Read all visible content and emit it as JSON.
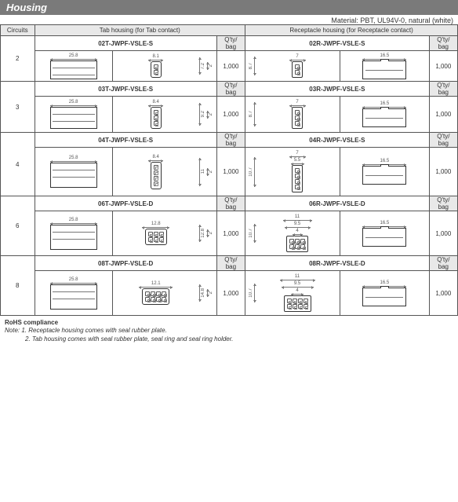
{
  "title": "Housing",
  "material": "Material: PBT, UL94V-0, natural (white)",
  "headers": {
    "circuits": "Circuits",
    "tab_housing": "Tab housing (for Tab contact)",
    "rec_housing": "Receptacle housing (for Receptacle contact)",
    "qty_bag": "Q'ty/\nbag"
  },
  "rows": [
    {
      "circuits": "2",
      "tab": {
        "part": "02T-JWPF-VSLE-S",
        "qty": "1,000",
        "len": "25.8",
        "end_w": "8.1",
        "end_h": "7.2",
        "pitch": "2",
        "rows": 1,
        "cols": 2
      },
      "rec": {
        "part": "02R-JWPF-VSLE-S",
        "qty": "1,000",
        "len": "16.5",
        "end_w": "7",
        "end_h": "8.7",
        "pitch": "2",
        "rows": 1,
        "cols": 2
      }
    },
    {
      "circuits": "3",
      "tab": {
        "part": "03T-JWPF-VSLE-S",
        "qty": "1,000",
        "len": "25.8",
        "end_w": "8.4",
        "end_h": "9.2",
        "pitch": "2",
        "rows": 1,
        "cols": 3
      },
      "rec": {
        "part": "03R-JWPF-VSLE-S",
        "qty": "1,000",
        "len": "16.5",
        "end_w": "7",
        "end_h": "8.7",
        "pitch": "2",
        "rows": 1,
        "cols": 3
      }
    },
    {
      "circuits": "4",
      "tab": {
        "part": "04T-JWPF-VSLE-S",
        "qty": "1,000",
        "len": "25.8",
        "end_w": "8.4",
        "end_h": "11",
        "pitch": "2",
        "rows": 1,
        "cols": 4
      },
      "rec": {
        "part": "04R-JWPF-VSLE-S",
        "qty": "1,000",
        "len": "16.5",
        "end_w": "7",
        "sub_w": "5.5",
        "end_h": "10.7",
        "pitch": "2",
        "rows": 1,
        "cols": 4
      }
    },
    {
      "circuits": "6",
      "tab": {
        "part": "06T-JWPF-VSLE-D",
        "qty": "1,000",
        "len": "25.8",
        "end_w": "12.8",
        "end_h": "12.8",
        "pitch": "2",
        "rows": 2,
        "cols": 3
      },
      "rec": {
        "part": "06R-JWPF-VSLE-D",
        "qty": "1,000",
        "len": "16.5",
        "end_w": "11",
        "sub_w": "9.5",
        "sub2_w": "4",
        "end_h": "10.7",
        "pitch": "2",
        "rows": 2,
        "cols": 3
      }
    },
    {
      "circuits": "8",
      "tab": {
        "part": "08T-JWPF-VSLE-D",
        "qty": "1,000",
        "len": "25.8",
        "end_w": "12.1",
        "end_h": "14.8",
        "pitch": "2",
        "rows": 2,
        "cols": 4
      },
      "rec": {
        "part": "08R-JWPF-VSLE-D",
        "qty": "1,000",
        "len": "16.5",
        "end_w": "11",
        "sub_w": "9.5",
        "sub2_w": "4",
        "end_h": "10.7",
        "pitch": "2",
        "rows": 2,
        "cols": 4
      }
    }
  ],
  "notes": {
    "compliance": "RoHS compliance",
    "note_label": "Note:",
    "n1": "1. Receptacle housing comes with seal rubber plate.",
    "n2": "2. Tab housing comes with seal rubber plate, seal ring and seal ring holder."
  },
  "style": {
    "title_bg": "#7a7a7a",
    "header_bg": "#e8e8e8",
    "border": "#555555",
    "text": "#333333",
    "dim_color": "#777777"
  }
}
